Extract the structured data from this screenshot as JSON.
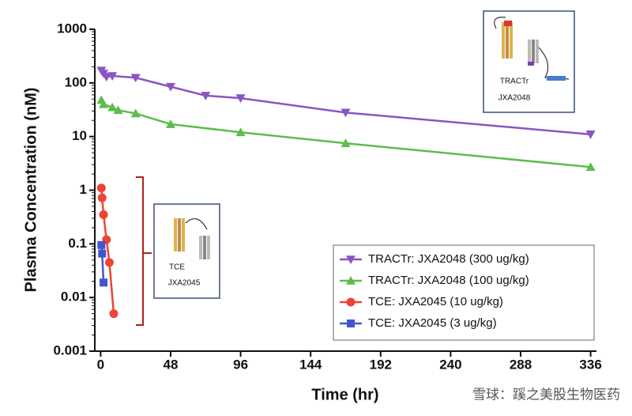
{
  "chart_data": {
    "type": "line",
    "x_label": "Time (hr)",
    "y_label": "Plasma Concentration (nM)",
    "xlim": [
      -4,
      340
    ],
    "xticks": [
      0,
      48,
      96,
      144,
      192,
      240,
      288,
      336
    ],
    "ylim": [
      0.001,
      1000
    ],
    "log_y": true,
    "yticks": [
      0.001,
      0.01,
      0.1,
      1,
      10,
      100,
      1000
    ],
    "legend": "lower right",
    "series": [
      {
        "name": "TRACTr: JXA2048 (300 ug/kg)",
        "color": "#8a55c0",
        "marker": "triangle-down",
        "x": [
          0.5,
          2,
          4,
          8,
          24,
          48,
          72,
          96,
          168,
          336
        ],
        "values": [
          170,
          150,
          130,
          135,
          125,
          85,
          58,
          52,
          28,
          11
        ]
      },
      {
        "name": "TRACTr: JXA2048 (100 ug/kg)",
        "color": "#5cbd4c",
        "marker": "triangle-up",
        "x": [
          0.5,
          2,
          8,
          12,
          24,
          48,
          96,
          168,
          336
        ],
        "values": [
          48,
          40,
          35,
          31,
          27,
          17,
          12,
          7.5,
          2.7
        ]
      },
      {
        "name": "TCE: JXA2045 (10 ug/kg)",
        "color": "#ee4433",
        "marker": "circle",
        "x": [
          0.5,
          1,
          2,
          4,
          6,
          9
        ],
        "values": [
          1.1,
          0.72,
          0.35,
          0.12,
          0.045,
          0.005
        ]
      },
      {
        "name": "TCE: JXA2045 (3 ug/kg)",
        "color": "#4455cc",
        "marker": "square",
        "x": [
          0.5,
          1,
          2
        ],
        "values": [
          0.095,
          0.066,
          0.019
        ]
      }
    ],
    "annotations": [
      "TRACTr",
      "JXA2048",
      "TCE",
      "JXA2045"
    ],
    "watermark": "雪球：蹊之美股生物医药"
  }
}
